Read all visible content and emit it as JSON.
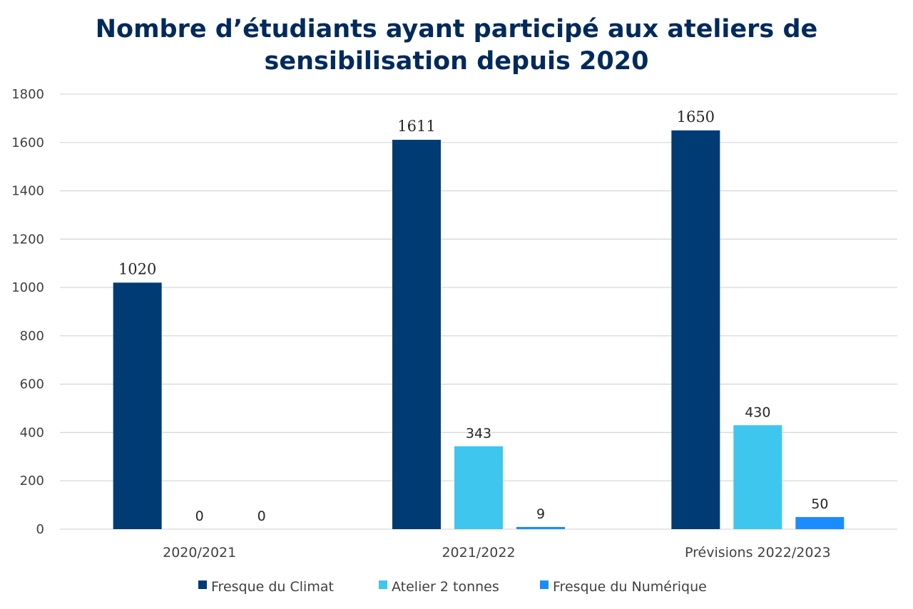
{
  "chart_data": {
    "type": "bar",
    "title_lines": [
      "Nombre d’étudiants ayant participé aux ateliers de",
      "sensibilisation depuis 2020"
    ],
    "categories": [
      "2020/2021",
      "2021/2022",
      "Prévisions 2022/2023"
    ],
    "series": [
      {
        "name": "Fresque du Climat",
        "values": [
          1020,
          1611,
          1650
        ],
        "color": "#003b73"
      },
      {
        "name": "Atelier 2 tonnes",
        "values": [
          0,
          343,
          430
        ],
        "color": "#3ec6ef"
      },
      {
        "name": "Fresque du Numérique",
        "values": [
          0,
          9,
          50
        ],
        "color": "#1a8cff"
      }
    ],
    "ylim": [
      0,
      1800
    ],
    "yticks": [
      0,
      200,
      400,
      600,
      800,
      1000,
      1200,
      1400,
      1600,
      1800
    ],
    "grid": true,
    "legend_position": "bottom",
    "data_labels": true
  }
}
